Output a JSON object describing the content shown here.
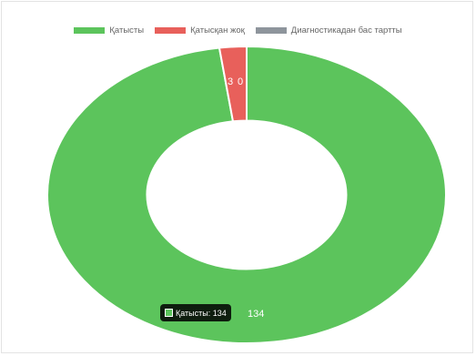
{
  "chart_data": {
    "type": "doughnut",
    "categories": [
      "Қатысты",
      "Қатысқан жоқ",
      "Диагностикадан бас тартты"
    ],
    "values": [
      134,
      3,
      0
    ],
    "colors": [
      "#5cc45c",
      "#e8605b",
      "#8e959c"
    ],
    "value_labels": [
      "134",
      "3",
      "0"
    ],
    "legend_position": "top",
    "tooltip": {
      "label": "Қатысты: 134",
      "category_index": 0
    }
  }
}
